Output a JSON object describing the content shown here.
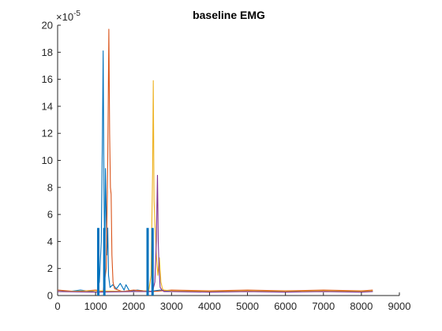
{
  "chart_data": {
    "type": "line",
    "title": "baseline EMG",
    "xlabel": "",
    "ylabel": "",
    "xlim": [
      0,
      9000
    ],
    "ylim": [
      0,
      20
    ],
    "y_multiplier_label": "×10",
    "y_multiplier_exponent": "-5",
    "x_ticks": [
      "0",
      "1000",
      "2000",
      "3000",
      "4000",
      "5000",
      "6000",
      "7000",
      "8000",
      "9000"
    ],
    "y_ticks": [
      "0",
      "2",
      "4",
      "6",
      "8",
      "10",
      "12",
      "14",
      "16",
      "18",
      "20"
    ],
    "grid": false,
    "colors": {
      "series1": "#0072BD",
      "series2": "#D95319",
      "series3": "#EDB120",
      "series4": "#7E2F8E",
      "axis": "#262626"
    },
    "series": [
      {
        "color": "#0072BD",
        "x": [
          0,
          300,
          600,
          900,
          1050,
          1100,
          1150,
          1180,
          1200,
          1220,
          1240,
          1260,
          1280,
          1300,
          1320,
          1340,
          1380,
          1450,
          1550,
          1650,
          1750,
          1800,
          1900,
          2100,
          2400,
          2700,
          3000,
          4000,
          5000,
          6000,
          7000,
          8000,
          8300
        ],
        "y": [
          0.4,
          0.3,
          0.4,
          0.3,
          0.4,
          1.0,
          4.0,
          12.0,
          18.1,
          8.0,
          3.0,
          9.4,
          6.0,
          3.0,
          5.0,
          1.5,
          0.6,
          0.8,
          0.5,
          0.9,
          0.4,
          0.8,
          0.3,
          0.4,
          0.3,
          0.4,
          0.3,
          0.35,
          0.3,
          0.35,
          0.3,
          0.35,
          0.3
        ]
      },
      {
        "color": "#D95319",
        "x": [
          0,
          500,
          1000,
          1200,
          1280,
          1320,
          1350,
          1370,
          1390,
          1410,
          1430,
          1460,
          1500,
          1600,
          1700,
          2000,
          2500,
          3000,
          4000,
          5000,
          6000,
          7000,
          8000,
          8300
        ],
        "y": [
          0.4,
          0.3,
          0.4,
          0.3,
          2.0,
          10.0,
          19.7,
          12.0,
          8.0,
          7.5,
          3.0,
          1.0,
          0.5,
          0.4,
          0.3,
          0.4,
          0.3,
          0.4,
          0.35,
          0.4,
          0.35,
          0.4,
          0.35,
          0.4
        ]
      },
      {
        "color": "#EDB120",
        "x": [
          0,
          1000,
          2000,
          2400,
          2460,
          2500,
          2520,
          2540,
          2570,
          2600,
          2640,
          2680,
          2720,
          2760,
          2800,
          3000,
          4000,
          5000,
          6000,
          7000,
          8000,
          8300
        ],
        "y": [
          0.3,
          0.35,
          0.3,
          0.35,
          1.5,
          9.0,
          15.9,
          7.0,
          5.0,
          3.0,
          1.5,
          2.8,
          1.0,
          0.5,
          0.4,
          0.35,
          0.3,
          0.35,
          0.3,
          0.35,
          0.3,
          0.35
        ]
      },
      {
        "color": "#7E2F8E",
        "x": [
          0,
          1000,
          2000,
          2500,
          2560,
          2600,
          2630,
          2650,
          2670,
          2700,
          2750,
          2800,
          3000,
          4000,
          5000,
          6000,
          7000,
          8000,
          8300
        ],
        "y": [
          0.3,
          0.25,
          0.3,
          0.3,
          1.0,
          4.0,
          8.9,
          4.0,
          2.0,
          0.6,
          0.4,
          0.3,
          0.3,
          0.25,
          0.3,
          0.25,
          0.3,
          0.25,
          0.3
        ]
      }
    ],
    "markers": [
      {
        "x": 1070,
        "y": 5.0
      },
      {
        "x": 1230,
        "y": 5.0
      },
      {
        "x": 2370,
        "y": 5.0
      },
      {
        "x": 2500,
        "y": 5.0
      }
    ]
  }
}
